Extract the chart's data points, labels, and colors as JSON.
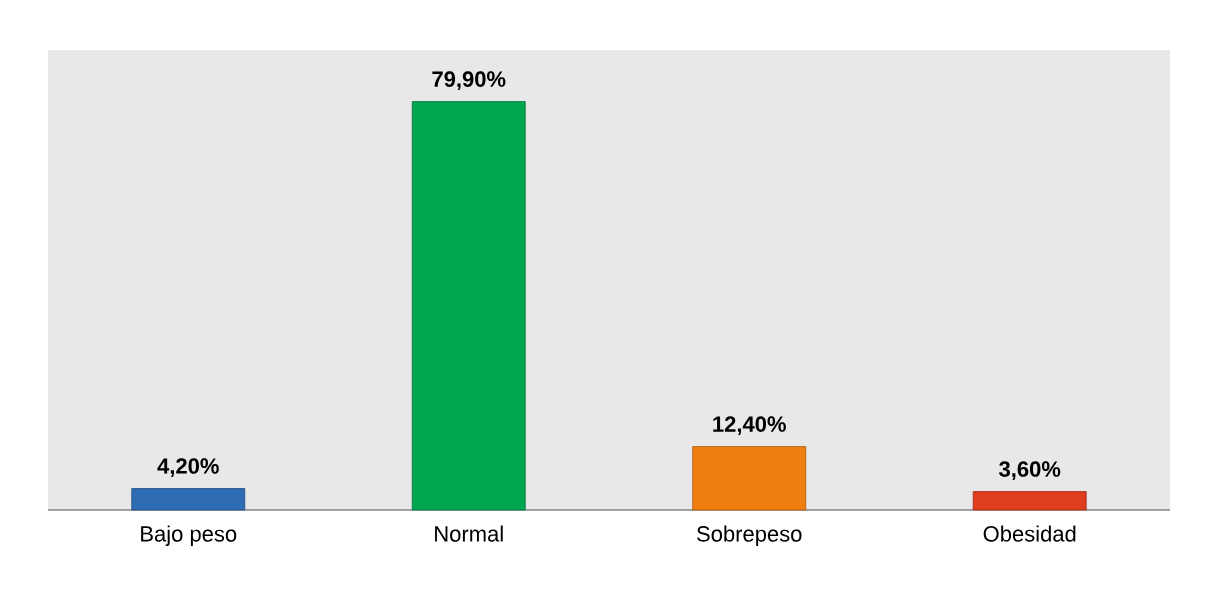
{
  "chart_data": {
    "type": "bar",
    "categories": [
      "Bajo peso",
      "Normal",
      "Sobrepeso",
      "Obesidad"
    ],
    "values": [
      4.2,
      79.9,
      12.4,
      3.6
    ],
    "value_labels": [
      "4,20%",
      "79,90%",
      "12,40%",
      "3,60%"
    ],
    "colors": [
      "#2e6db4",
      "#00a650",
      "#f07f10",
      "#e03c1e"
    ],
    "ylim": [
      0,
      90
    ]
  }
}
